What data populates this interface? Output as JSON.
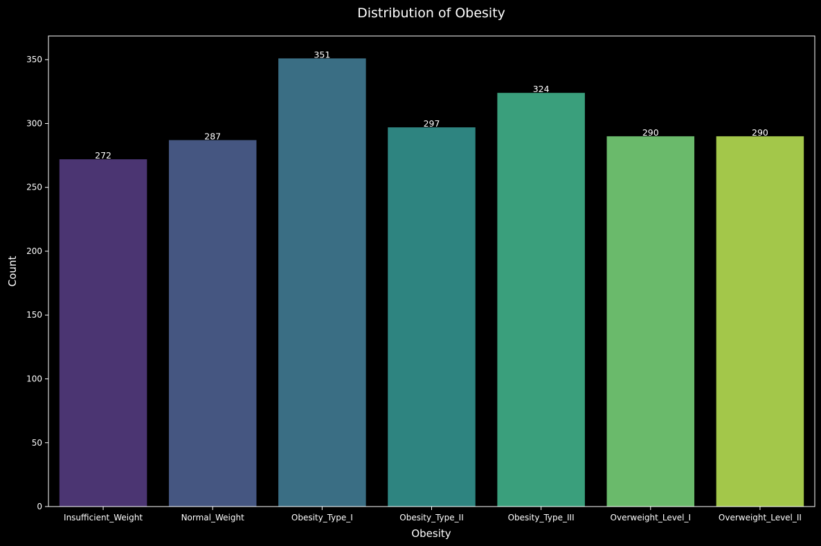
{
  "chart_data": {
    "type": "bar",
    "title": "Distribution of Obesity",
    "xlabel": "Obesity",
    "ylabel": "Count",
    "categories": [
      "Insufficient_Weight",
      "Normal_Weight",
      "Obesity_Type_I",
      "Obesity_Type_II",
      "Obesity_Type_III",
      "Overweight_Level_I",
      "Overweight_Level_II"
    ],
    "values": [
      272,
      287,
      351,
      297,
      324,
      290,
      290
    ],
    "data_labels": [
      "272",
      "287",
      "351",
      "297",
      "324",
      "290",
      "290"
    ],
    "colors": [
      "#4b3572",
      "#455681",
      "#3a6e84",
      "#2e8480",
      "#3a9f7c",
      "#6aba6b",
      "#a3c74a"
    ],
    "ylim": [
      0,
      368.55
    ],
    "yticks": [
      0,
      50,
      100,
      150,
      200,
      250,
      300,
      350
    ],
    "ytick_labels": [
      "0",
      "50",
      "100",
      "150",
      "200",
      "250",
      "300",
      "350"
    ],
    "grid": false,
    "legend": "none",
    "background": "#000000",
    "text_color": "#ffffff"
  }
}
